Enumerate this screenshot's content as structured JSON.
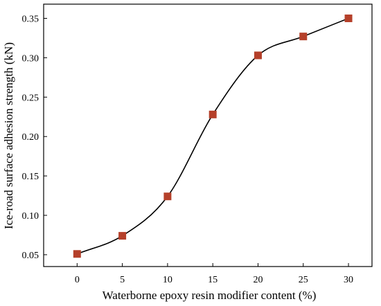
{
  "chart_data": {
    "type": "line",
    "xlabel": "Waterborne epoxy resin modifier content (%)",
    "ylabel": "Ice-road surface adhesion strength (kN)",
    "x": [
      0,
      5,
      10,
      15,
      20,
      25,
      30
    ],
    "series": [
      {
        "values": [
          0.051,
          0.074,
          0.124,
          0.228,
          0.303,
          0.327,
          0.35
        ]
      }
    ],
    "xticks": [
      "0",
      "5",
      "10",
      "15",
      "20",
      "25",
      "30"
    ],
    "yticks": [
      "0.05",
      "0.10",
      "0.15",
      "0.20",
      "0.25",
      "0.30",
      "0.35"
    ],
    "xlim": [
      -3.7,
      32.6
    ],
    "ylim": [
      0.035,
      0.368
    ],
    "line_style": "smooth",
    "marker": "square",
    "marker_color": "#b5402a",
    "line_color": "#000000",
    "grid": false,
    "legend": false
  }
}
